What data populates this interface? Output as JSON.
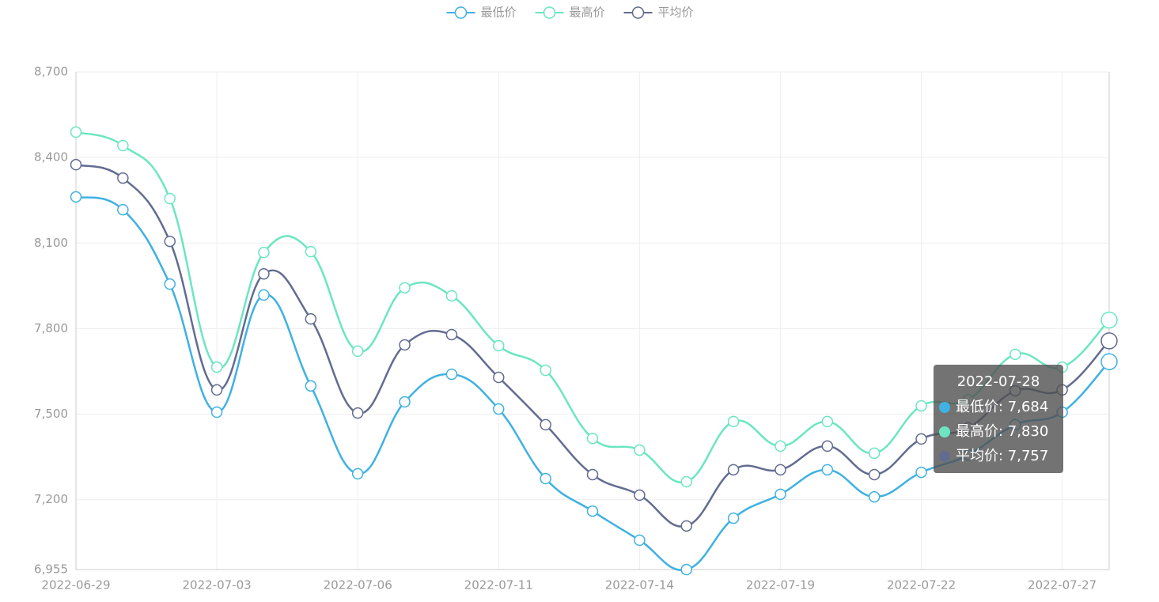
{
  "chart_data": {
    "type": "line",
    "categories": [
      "2022-06-29",
      null,
      null,
      "2022-07-03",
      null,
      null,
      "2022-07-06",
      null,
      null,
      "2022-07-11",
      null,
      null,
      "2022-07-14",
      null,
      null,
      "2022-07-19",
      null,
      null,
      "2022-07-22",
      null,
      null,
      "2022-07-27",
      "2022-07-28"
    ],
    "series": [
      {
        "name": "最低价",
        "color": "#3fb1e3",
        "values": [
          8262,
          8217,
          7956,
          7507,
          7918,
          7599,
          7291,
          7543,
          7640,
          7518,
          7274,
          7160,
          7058,
          6955,
          7135,
          7219,
          7305,
          7210,
          7296,
          7357,
          7463,
          7507,
          7684
        ]
      },
      {
        "name": "最高价",
        "color": "#6be6c1",
        "values": [
          8489,
          8442,
          8256,
          7665,
          8067,
          8070,
          7721,
          7943,
          7915,
          7740,
          7654,
          7415,
          7374,
          7263,
          7474,
          7388,
          7474,
          7363,
          7529,
          7551,
          7710,
          7665,
          7830
        ]
      },
      {
        "name": "平均价",
        "color": "#626c91",
        "values": [
          8375,
          8328,
          8106,
          7585,
          7992,
          7834,
          7504,
          7743,
          7779,
          7629,
          7463,
          7288,
          7216,
          7108,
          7305,
          7305,
          7388,
          7288,
          7413,
          7452,
          7582,
          7585,
          7757
        ]
      }
    ],
    "ylim": [
      6955,
      8700
    ],
    "yticks": [
      {
        "value": 6955,
        "label": "6,955"
      },
      {
        "value": 7200,
        "label": "7,200"
      },
      {
        "value": 7500,
        "label": "7,500"
      },
      {
        "value": 7800,
        "label": "7,800"
      },
      {
        "value": 8100,
        "label": "8,100"
      },
      {
        "value": 8400,
        "label": "8,400"
      },
      {
        "value": 8700,
        "label": "8,700"
      }
    ],
    "grid": true,
    "legend": "top",
    "tooltip": {
      "title": "2022-07-28",
      "items": [
        "最低价: 7,684",
        "最高价: 7,830",
        "平均价: 7,757"
      ]
    }
  }
}
